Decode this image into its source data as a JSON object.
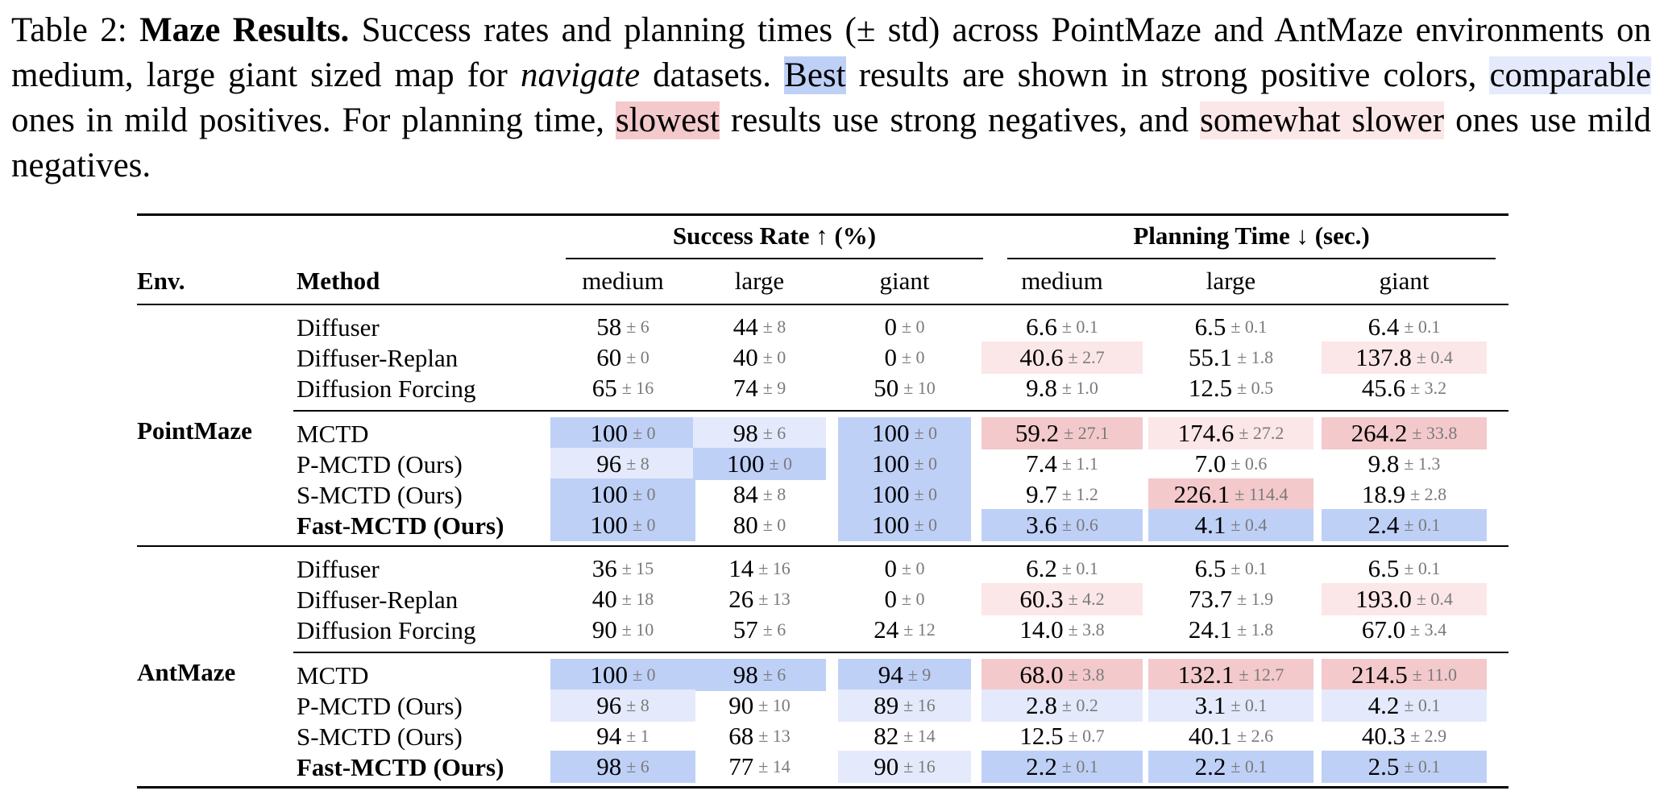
{
  "caption": {
    "label": "Table 2:",
    "title": "Maze Results.",
    "t1": "Success rates and planning times (± std) across PointMaze and AntMaze environments on medium, large giant sized map for",
    "italic": "navigate",
    "t2": "datasets.",
    "best": "Best",
    "t3": "results are shown in strong positive colors,",
    "comparable": "comparable",
    "t4": "ones in mild positives. For planning time,",
    "slowest": "slowest",
    "t5": "results use strong negatives, and",
    "somewhat_slower": "somewhat slower",
    "t6": "ones use mild negatives."
  },
  "table": {
    "group_success": "Success Rate ↑ (%)",
    "group_time": "Planning Time ↓ (sec.)",
    "col_env": "Env.",
    "col_method": "Method",
    "subcols": [
      "medium",
      "large",
      "giant",
      "medium",
      "large",
      "giant"
    ],
    "envs": [
      "PointMaze",
      "AntMaze"
    ],
    "rows": [
      {
        "method": "Diffuser",
        "bold": false,
        "cells": [
          [
            "58",
            "6",
            ""
          ],
          [
            "44",
            "8",
            ""
          ],
          [
            "0",
            "0",
            ""
          ],
          [
            "6.6",
            "0.1",
            ""
          ],
          [
            "6.5",
            "0.1",
            ""
          ],
          [
            "6.4",
            "0.1",
            ""
          ]
        ]
      },
      {
        "method": "Diffuser-Replan",
        "bold": false,
        "cells": [
          [
            "60",
            "0",
            ""
          ],
          [
            "40",
            "0",
            ""
          ],
          [
            "0",
            "0",
            ""
          ],
          [
            "40.6",
            "2.7",
            "ss"
          ],
          [
            "55.1",
            "1.8",
            ""
          ],
          [
            "137.8",
            "0.4",
            "ss"
          ]
        ]
      },
      {
        "method": "Diffusion Forcing",
        "bold": false,
        "cells": [
          [
            "65",
            "16",
            ""
          ],
          [
            "74",
            "9",
            ""
          ],
          [
            "50",
            "10",
            ""
          ],
          [
            "9.8",
            "1.0",
            ""
          ],
          [
            "12.5",
            "0.5",
            ""
          ],
          [
            "45.6",
            "3.2",
            ""
          ]
        ]
      },
      {
        "method": "MCTD",
        "bold": false,
        "cells": [
          [
            "100",
            "0",
            "best"
          ],
          [
            "98",
            "6",
            "comp"
          ],
          [
            "100",
            "0",
            "best"
          ],
          [
            "59.2",
            "27.1",
            "slow"
          ],
          [
            "174.6",
            "27.2",
            "ss"
          ],
          [
            "264.2",
            "33.8",
            "slow"
          ]
        ]
      },
      {
        "method": "P-MCTD (Ours)",
        "bold": false,
        "cells": [
          [
            "96",
            "8",
            "comp"
          ],
          [
            "100",
            "0",
            "best"
          ],
          [
            "100",
            "0",
            "best"
          ],
          [
            "7.4",
            "1.1",
            ""
          ],
          [
            "7.0",
            "0.6",
            ""
          ],
          [
            "9.8",
            "1.3",
            ""
          ]
        ]
      },
      {
        "method": "S-MCTD (Ours)",
        "bold": false,
        "cells": [
          [
            "100",
            "0",
            "best"
          ],
          [
            "84",
            "8",
            ""
          ],
          [
            "100",
            "0",
            "best"
          ],
          [
            "9.7",
            "1.2",
            ""
          ],
          [
            "226.1",
            "114.4",
            "slow"
          ],
          [
            "18.9",
            "2.8",
            ""
          ]
        ]
      },
      {
        "method": "Fast-MCTD (Ours)",
        "bold": true,
        "cells": [
          [
            "100",
            "0",
            "best"
          ],
          [
            "80",
            "0",
            ""
          ],
          [
            "100",
            "0",
            "best"
          ],
          [
            "3.6",
            "0.6",
            "best"
          ],
          [
            "4.1",
            "0.4",
            "best"
          ],
          [
            "2.4",
            "0.1",
            "best"
          ]
        ]
      },
      {
        "method": "Diffuser",
        "bold": false,
        "cells": [
          [
            "36",
            "15",
            ""
          ],
          [
            "14",
            "16",
            ""
          ],
          [
            "0",
            "0",
            ""
          ],
          [
            "6.2",
            "0.1",
            ""
          ],
          [
            "6.5",
            "0.1",
            ""
          ],
          [
            "6.5",
            "0.1",
            ""
          ]
        ]
      },
      {
        "method": "Diffuser-Replan",
        "bold": false,
        "cells": [
          [
            "40",
            "18",
            ""
          ],
          [
            "26",
            "13",
            ""
          ],
          [
            "0",
            "0",
            ""
          ],
          [
            "60.3",
            "4.2",
            "ss"
          ],
          [
            "73.7",
            "1.9",
            ""
          ],
          [
            "193.0",
            "0.4",
            "ss"
          ]
        ]
      },
      {
        "method": "Diffusion Forcing",
        "bold": false,
        "cells": [
          [
            "90",
            "10",
            ""
          ],
          [
            "57",
            "6",
            ""
          ],
          [
            "24",
            "12",
            ""
          ],
          [
            "14.0",
            "3.8",
            ""
          ],
          [
            "24.1",
            "1.8",
            ""
          ],
          [
            "67.0",
            "3.4",
            ""
          ]
        ]
      },
      {
        "method": "MCTD",
        "bold": false,
        "cells": [
          [
            "100",
            "0",
            "best"
          ],
          [
            "98",
            "6",
            "best"
          ],
          [
            "94",
            "9",
            "best"
          ],
          [
            "68.0",
            "3.8",
            "slow"
          ],
          [
            "132.1",
            "12.7",
            "slow"
          ],
          [
            "214.5",
            "11.0",
            "slow"
          ]
        ]
      },
      {
        "method": "P-MCTD (Ours)",
        "bold": false,
        "cells": [
          [
            "96",
            "8",
            "comp"
          ],
          [
            "90",
            "10",
            ""
          ],
          [
            "89",
            "16",
            "comp"
          ],
          [
            "2.8",
            "0.2",
            "comp"
          ],
          [
            "3.1",
            "0.1",
            "comp"
          ],
          [
            "4.2",
            "0.1",
            "comp"
          ]
        ]
      },
      {
        "method": "S-MCTD (Ours)",
        "bold": false,
        "cells": [
          [
            "94",
            "1",
            ""
          ],
          [
            "68",
            "13",
            ""
          ],
          [
            "82",
            "14",
            ""
          ],
          [
            "12.5",
            "0.7",
            ""
          ],
          [
            "40.1",
            "2.6",
            ""
          ],
          [
            "40.3",
            "2.9",
            ""
          ]
        ]
      },
      {
        "method": "Fast-MCTD (Ours)",
        "bold": true,
        "cells": [
          [
            "98",
            "6",
            "best"
          ],
          [
            "77",
            "14",
            ""
          ],
          [
            "90",
            "16",
            "comp"
          ],
          [
            "2.2",
            "0.1",
            "best"
          ],
          [
            "2.2",
            "0.1",
            "best"
          ],
          [
            "2.5",
            "0.1",
            "best"
          ]
        ]
      }
    ]
  }
}
